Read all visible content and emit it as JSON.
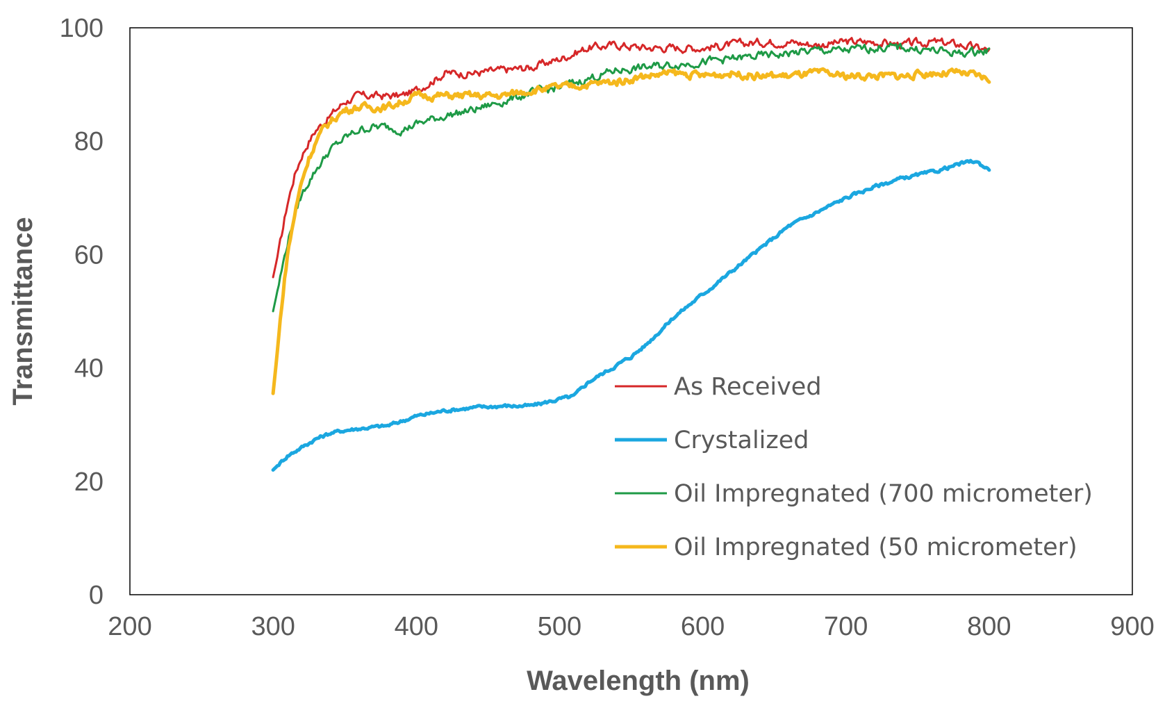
{
  "chart_data": {
    "type": "line",
    "title": "",
    "xlabel": "Wavelength (nm)",
    "ylabel": "Transmittance",
    "xlim": [
      200,
      900
    ],
    "ylim": [
      0,
      100
    ],
    "xticks": [
      "200",
      "300",
      "400",
      "500",
      "600",
      "700",
      "800",
      "900"
    ],
    "yticks": [
      "0",
      "20",
      "40",
      "60",
      "80",
      "100"
    ],
    "grid": false,
    "legend_position": "lower-right",
    "series": [
      {
        "name": "As Received",
        "color": "#d62728",
        "x": [
          300,
          305,
          310,
          315,
          320,
          325,
          330,
          340,
          350,
          360,
          370,
          380,
          390,
          400,
          420,
          440,
          460,
          480,
          500,
          520,
          540,
          560,
          580,
          600,
          620,
          640,
          660,
          680,
          700,
          720,
          740,
          760,
          780,
          800
        ],
        "y": [
          56,
          62,
          69,
          74,
          77.5,
          80,
          82,
          84.5,
          87,
          88,
          88,
          88,
          88,
          89,
          92,
          92,
          92.5,
          93,
          94.5,
          96.5,
          97,
          96.5,
          96.5,
          96.5,
          97,
          97.5,
          97.5,
          97,
          97.5,
          97.5,
          97,
          97.5,
          97,
          96
        ]
      },
      {
        "name": "Crystalized",
        "color": "#1ba7e0",
        "x": [
          300,
          310,
          320,
          330,
          340,
          350,
          360,
          380,
          400,
          420,
          440,
          460,
          480,
          500,
          510,
          520,
          530,
          540,
          550,
          560,
          570,
          580,
          590,
          600,
          610,
          620,
          630,
          640,
          650,
          660,
          680,
          700,
          720,
          740,
          760,
          780,
          790,
          800
        ],
        "y": [
          22,
          24.5,
          26,
          27.5,
          28.5,
          29,
          29.3,
          29.8,
          31.5,
          32.5,
          33,
          33.3,
          33.3,
          34.5,
          35,
          37.5,
          39,
          40.5,
          42,
          44,
          46.5,
          49,
          51,
          53,
          55,
          57,
          59,
          61,
          63,
          65,
          67.5,
          70,
          72,
          73.5,
          74.5,
          76,
          76.5,
          75
        ]
      },
      {
        "name": "Oil Impregnated (700 micrometer)",
        "color": "#1e9a46",
        "x": [
          300,
          305,
          310,
          315,
          320,
          325,
          330,
          340,
          350,
          360,
          370,
          380,
          390,
          400,
          420,
          440,
          460,
          480,
          500,
          520,
          540,
          560,
          580,
          600,
          620,
          640,
          660,
          680,
          700,
          720,
          740,
          760,
          780,
          800
        ],
        "y": [
          50,
          56,
          62,
          67,
          70.5,
          73,
          75,
          78.5,
          80.5,
          82,
          82.5,
          82.5,
          82,
          83,
          84.5,
          85.5,
          87,
          88.5,
          89.5,
          91,
          92.5,
          93,
          93.5,
          94,
          94.5,
          95,
          95.5,
          96,
          96,
          96.5,
          96.5,
          96,
          95.5,
          96
        ]
      },
      {
        "name": "Oil Impregnated (50 micrometer)",
        "color": "#f5b81d",
        "x": [
          300,
          303,
          306,
          310,
          315,
          320,
          325,
          330,
          335,
          340,
          350,
          360,
          370,
          380,
          390,
          400,
          420,
          440,
          460,
          480,
          500,
          520,
          540,
          560,
          580,
          600,
          620,
          640,
          660,
          680,
          700,
          720,
          740,
          760,
          780,
          800
        ],
        "y": [
          35.5,
          43,
          51,
          60,
          67,
          73,
          77,
          80,
          82,
          83.5,
          85.5,
          86,
          86,
          86,
          87,
          88,
          88,
          88,
          88,
          89,
          89.5,
          90,
          90.5,
          91.5,
          92,
          91.5,
          92,
          91.5,
          91.5,
          92,
          91.5,
          91.5,
          91.5,
          92,
          92,
          91
        ]
      }
    ]
  }
}
